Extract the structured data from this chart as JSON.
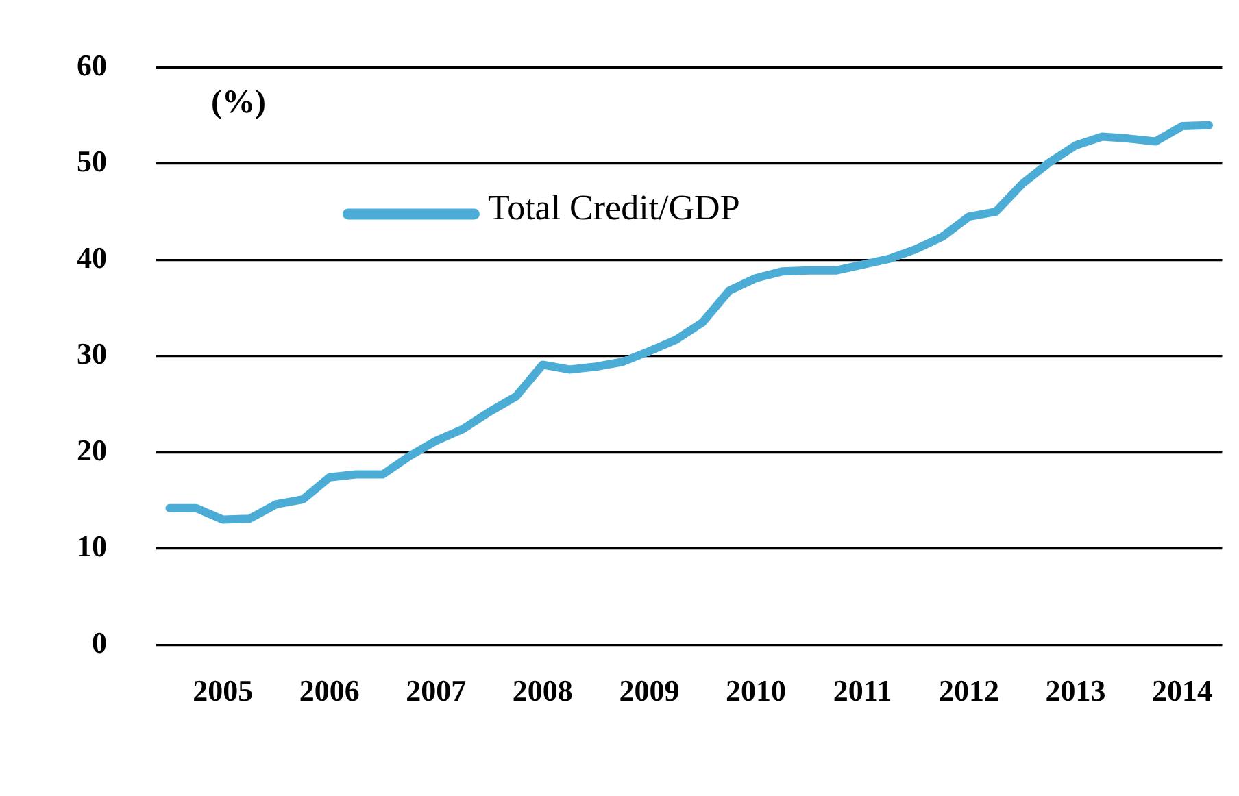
{
  "chart_data": {
    "type": "line",
    "ylabel": "(%)",
    "categories": [
      null,
      null,
      "2005",
      null,
      null,
      null,
      "2006",
      null,
      null,
      null,
      "2007",
      null,
      null,
      null,
      "2008",
      null,
      null,
      null,
      "2009",
      null,
      null,
      null,
      "2010",
      null,
      null,
      null,
      "2011",
      null,
      null,
      null,
      "2012",
      null,
      null,
      null,
      "2013",
      null,
      null,
      null,
      "2014",
      null
    ],
    "series": [
      {
        "name": "Total Credit/GDP",
        "color": "#4bacd6",
        "values": [
          14.2,
          14.2,
          13.0,
          13.1,
          14.6,
          15.1,
          17.4,
          17.7,
          17.7,
          19.6,
          21.2,
          22.4,
          24.2,
          25.8,
          29.1,
          28.6,
          28.9,
          29.4,
          30.5,
          31.7,
          33.5,
          36.8,
          38.1,
          38.8,
          38.9,
          38.9,
          39.5,
          40.1,
          41.1,
          42.4,
          44.5,
          45.0,
          47.9,
          50.1,
          51.9,
          52.8,
          52.6,
          52.3,
          53.9,
          54.0
        ]
      }
    ],
    "ylim": [
      0,
      60
    ],
    "yticks": [
      0,
      10,
      20,
      30,
      40,
      50,
      60
    ],
    "grid": "y",
    "legend": "top left",
    "marker": "none",
    "line_style": "solid"
  }
}
